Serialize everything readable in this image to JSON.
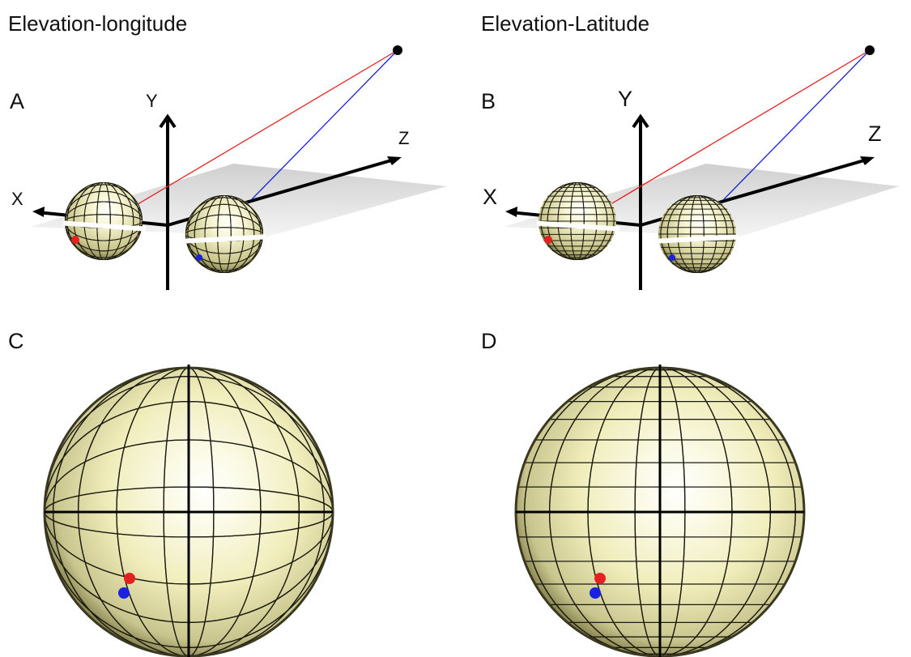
{
  "titles": {
    "left": "Elevation-longitude",
    "right": "Elevation-Latitude"
  },
  "panels": {
    "a": "A",
    "b": "B",
    "c": "C",
    "d": "D"
  },
  "axes": {
    "left": {
      "x": "X",
      "y": "Y",
      "z": "Z"
    },
    "right": {
      "x": "X",
      "y": "Y",
      "z": "Z"
    }
  },
  "colors": {
    "sphere_light": "#ffffff",
    "sphere_mid": "#f4f2c4",
    "sphere_dark": "#6f6c3a",
    "grid_line": "#111111",
    "ray_left_ear": "#e62020",
    "ray_right_ear": "#1a22e0",
    "plane": "#d6d6d6"
  }
}
